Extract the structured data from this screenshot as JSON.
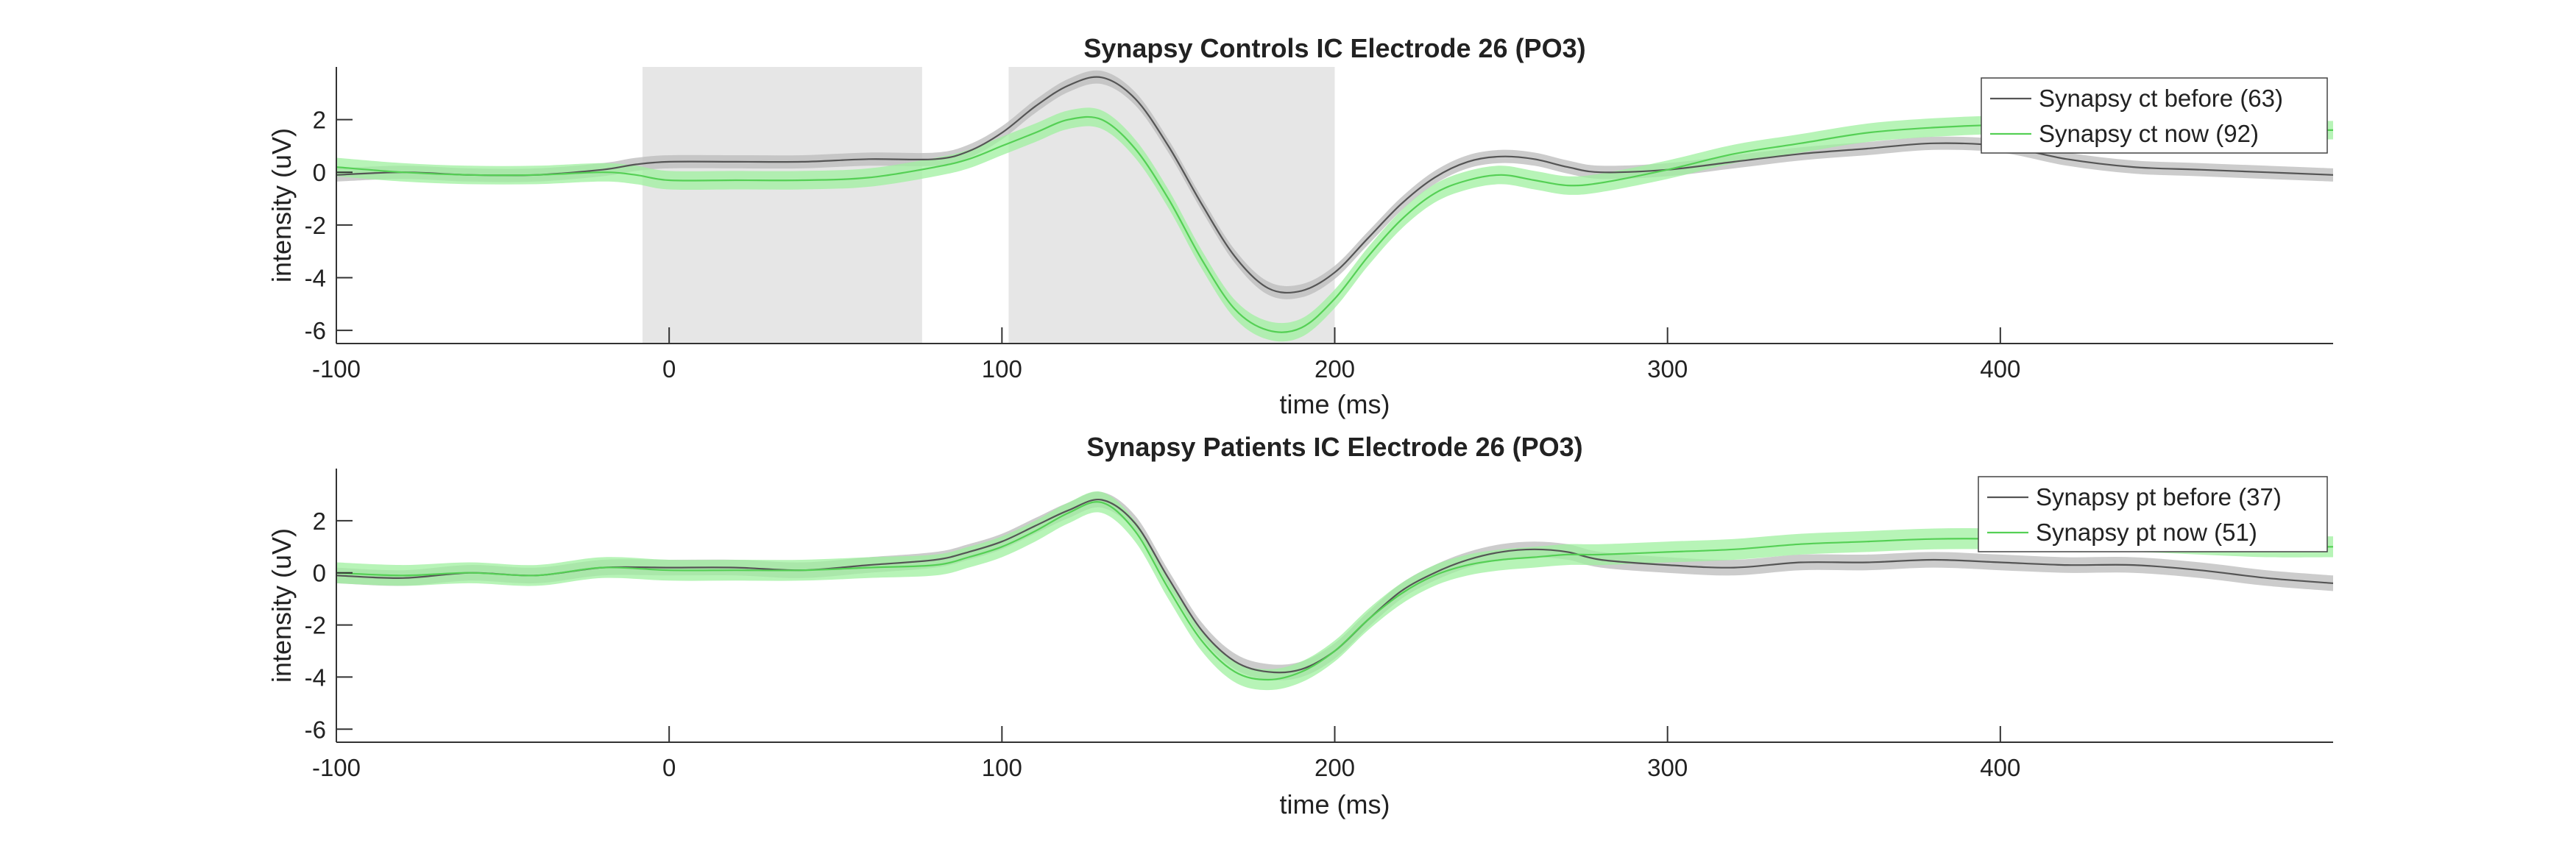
{
  "chart_data": [
    {
      "type": "line",
      "title": "Synapsy Controls IC Electrode 26 (PO3)",
      "xlabel": "time (ms)",
      "ylabel": "intensity (uV)",
      "xlim": [
        -100,
        500
      ],
      "ylim": [
        -6.5,
        4
      ],
      "xticks": [
        -100,
        0,
        100,
        200,
        300,
        400
      ],
      "yticks": [
        -6,
        -4,
        -2,
        0,
        2
      ],
      "legend_position": "top-right",
      "shaded_regions": [
        [
          -8,
          76
        ],
        [
          102,
          200
        ]
      ],
      "series": [
        {
          "name": "Synapsy ct before (63)",
          "color": "#555555",
          "band_color": "#bbbbbb",
          "x": [
            -100,
            -80,
            -60,
            -40,
            -20,
            -10,
            0,
            20,
            40,
            60,
            80,
            90,
            100,
            110,
            120,
            130,
            140,
            150,
            160,
            170,
            180,
            190,
            200,
            210,
            220,
            230,
            240,
            250,
            260,
            270,
            280,
            300,
            320,
            340,
            360,
            380,
            400,
            420,
            440,
            460,
            480,
            500
          ],
          "y": [
            -0.1,
            0.0,
            -0.1,
            -0.1,
            0.1,
            0.3,
            0.4,
            0.4,
            0.4,
            0.5,
            0.5,
            0.8,
            1.5,
            2.5,
            3.3,
            3.6,
            2.8,
            1.0,
            -1.2,
            -3.2,
            -4.4,
            -4.5,
            -3.8,
            -2.5,
            -1.2,
            -0.2,
            0.4,
            0.6,
            0.5,
            0.2,
            0.0,
            0.1,
            0.4,
            0.7,
            0.9,
            1.1,
            1.0,
            0.5,
            0.2,
            0.1,
            0.0,
            -0.1
          ],
          "ci": 0.25
        },
        {
          "name": "Synapsy ct now (92)",
          "color": "#55d055",
          "band_color": "#9ff09f",
          "x": [
            -100,
            -80,
            -60,
            -40,
            -20,
            -10,
            0,
            20,
            40,
            60,
            80,
            90,
            100,
            110,
            120,
            130,
            140,
            150,
            160,
            170,
            180,
            190,
            200,
            210,
            220,
            230,
            240,
            250,
            260,
            270,
            280,
            300,
            320,
            340,
            360,
            380,
            400,
            420,
            440,
            460,
            480,
            500
          ],
          "y": [
            0.2,
            0.0,
            -0.1,
            -0.1,
            0.0,
            -0.1,
            -0.3,
            -0.3,
            -0.3,
            -0.2,
            0.2,
            0.5,
            1.0,
            1.5,
            2.0,
            2.0,
            0.9,
            -1.0,
            -3.3,
            -5.2,
            -6.0,
            -5.9,
            -4.8,
            -3.2,
            -1.8,
            -0.8,
            -0.3,
            -0.1,
            -0.3,
            -0.5,
            -0.4,
            0.1,
            0.7,
            1.1,
            1.5,
            1.7,
            1.8,
            1.8,
            1.6,
            1.6,
            1.6,
            1.6
          ],
          "ci": 0.35
        }
      ]
    },
    {
      "type": "line",
      "title": "Synapsy Patients IC Electrode 26 (PO3)",
      "xlabel": "time (ms)",
      "ylabel": "intensity (uV)",
      "xlim": [
        -100,
        500
      ],
      "ylim": [
        -6.5,
        4
      ],
      "xticks": [
        -100,
        0,
        100,
        200,
        300,
        400
      ],
      "yticks": [
        -6,
        -4,
        -2,
        0,
        2
      ],
      "legend_position": "top-right",
      "shaded_regions": [],
      "series": [
        {
          "name": "Synapsy pt before (37)",
          "color": "#555555",
          "band_color": "#bbbbbb",
          "x": [
            -100,
            -80,
            -60,
            -40,
            -20,
            0,
            20,
            40,
            60,
            80,
            90,
            100,
            110,
            120,
            130,
            140,
            150,
            160,
            170,
            180,
            190,
            200,
            210,
            220,
            230,
            240,
            250,
            260,
            270,
            280,
            300,
            320,
            340,
            360,
            380,
            400,
            420,
            440,
            460,
            480,
            500
          ],
          "y": [
            -0.1,
            -0.2,
            0.0,
            -0.1,
            0.2,
            0.2,
            0.2,
            0.1,
            0.3,
            0.5,
            0.8,
            1.2,
            1.8,
            2.4,
            2.8,
            1.9,
            -0.2,
            -2.2,
            -3.4,
            -3.8,
            -3.7,
            -3.0,
            -1.8,
            -0.7,
            0.0,
            0.5,
            0.8,
            0.9,
            0.8,
            0.5,
            0.3,
            0.2,
            0.4,
            0.4,
            0.5,
            0.4,
            0.3,
            0.3,
            0.1,
            -0.2,
            -0.4
          ],
          "ci": 0.3
        },
        {
          "name": "Synapsy pt now (51)",
          "color": "#55d055",
          "band_color": "#9ff09f",
          "x": [
            -100,
            -80,
            -60,
            -40,
            -20,
            0,
            20,
            40,
            60,
            80,
            90,
            100,
            110,
            120,
            130,
            140,
            150,
            160,
            170,
            180,
            190,
            200,
            210,
            220,
            230,
            240,
            250,
            260,
            270,
            280,
            300,
            320,
            340,
            360,
            380,
            400,
            420,
            440,
            460,
            480,
            500
          ],
          "y": [
            0.0,
            -0.1,
            0.0,
            -0.1,
            0.2,
            0.1,
            0.1,
            0.1,
            0.2,
            0.3,
            0.6,
            1.0,
            1.6,
            2.3,
            2.7,
            1.6,
            -0.6,
            -2.6,
            -3.8,
            -4.1,
            -3.8,
            -3.0,
            -1.8,
            -0.8,
            -0.1,
            0.3,
            0.5,
            0.6,
            0.7,
            0.7,
            0.8,
            0.9,
            1.1,
            1.2,
            1.3,
            1.3,
            1.2,
            1.2,
            1.1,
            1.0,
            1.0
          ],
          "ci": 0.4
        }
      ]
    }
  ]
}
